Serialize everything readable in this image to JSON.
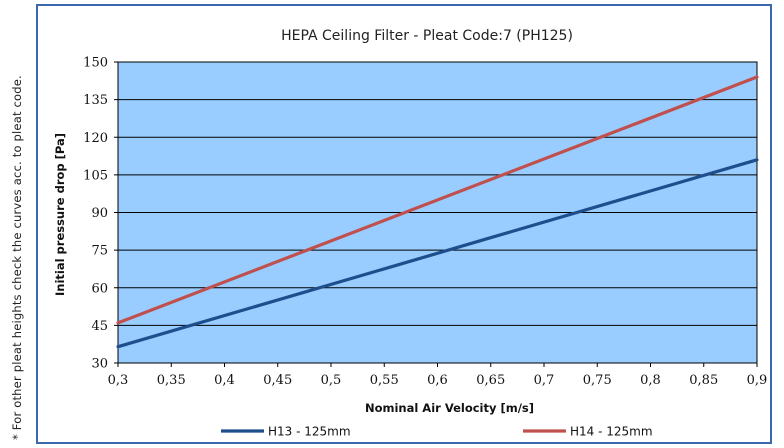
{
  "side_note": "* For other pleat heights check the curves acc. to pleat code.",
  "colors": {
    "plot_bg": "#99ccff",
    "h13": "#1f4e8c",
    "h14": "#c0504d",
    "frame": "#3a67b0"
  },
  "chart_data": {
    "type": "line",
    "title": "HEPA Ceiling Filter - Pleat Code:7 (PH125)",
    "xlabel": "Nominal Air Velocity [m/s]",
    "ylabel": "Initial pressure drop [Pa]",
    "xlim": [
      0.3,
      0.9
    ],
    "ylim": [
      30,
      150
    ],
    "x_ticks": [
      "0,3",
      "0,35",
      "0,4",
      "0,45",
      "0,5",
      "0,55",
      "0,6",
      "0,65",
      "0,7",
      "0,75",
      "0,8",
      "0,85",
      "0,9"
    ],
    "y_ticks": [
      "150",
      "135",
      "120",
      "105",
      "90",
      "75",
      "60",
      "45",
      "30"
    ],
    "grid": "horizontal",
    "legend": "bottom",
    "series": [
      {
        "name": "H13 - 125mm",
        "color": "#1f4e8c",
        "x": [
          0.3,
          0.9
        ],
        "y": [
          36.5,
          111
        ]
      },
      {
        "name": "H14 - 125mm",
        "color": "#c0504d",
        "x": [
          0.3,
          0.9
        ],
        "y": [
          46,
          144
        ]
      }
    ]
  }
}
